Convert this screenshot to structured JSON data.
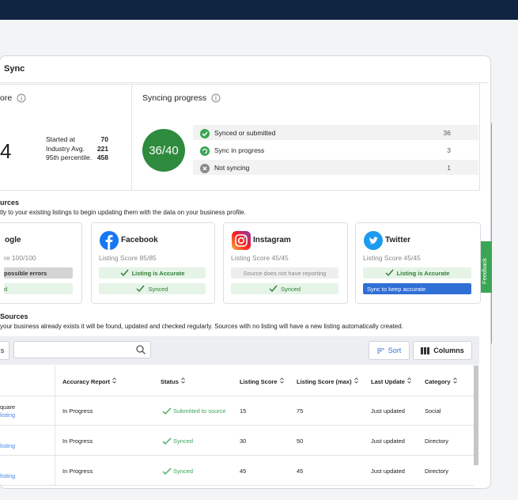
{
  "header": {
    "title": "Sync"
  },
  "score": {
    "title": "ore",
    "value": "4",
    "stats": [
      {
        "label": "Started at",
        "value": 70
      },
      {
        "label": "Industry Avg.",
        "value": 221
      },
      {
        "label": "95th percentile.",
        "value": 458
      }
    ]
  },
  "progress": {
    "title": "Syncing progress",
    "ratio": "36/40",
    "rows": [
      {
        "label": "Synced or submitted",
        "count": 36
      },
      {
        "label": "Sync in progress",
        "count": 3
      },
      {
        "label": "Not syncing",
        "count": 1
      }
    ]
  },
  "sources": {
    "title": "urces",
    "description": "tly to your existing listings to begin updating them with the data on your business profile."
  },
  "cards": [
    {
      "name": "ogle",
      "score": "re 100/100",
      "status": "possible errors",
      "sync": "d"
    },
    {
      "name": "Facebook",
      "score": "Listing Score 85/85",
      "status": "Listing is Accurate",
      "sync": "Synced"
    },
    {
      "name": "Instagram",
      "score": "Listing Score 45/45",
      "status": "Source does not have reporting",
      "sync": "Synced"
    },
    {
      "name": "Twitter",
      "score": "Listing Score 45/45",
      "status": "Listing is Accurate",
      "sync": "Sync to keep accurate"
    }
  ],
  "all_sources": {
    "title": "Sources",
    "description": "your business already exists it will be found, updated and checked regularly. Sources with no listing will have a new listing automatically created."
  },
  "toolbar": {
    "left_button": "s",
    "sort": "Sort",
    "columns": "Columns"
  },
  "table": {
    "columns": [
      "Accuracy Report",
      "Status",
      "Listing Score",
      "Listing Score (max)",
      "Last Update",
      "Category"
    ],
    "rows": [
      {
        "name": "quare",
        "link": "listing",
        "cells": [
          "In Progress",
          "Submitted to source",
          15,
          75,
          "Just updated",
          "Social"
        ]
      },
      {
        "link": "listing",
        "cells": [
          "In Progress",
          "Synced",
          30,
          50,
          "Just updated",
          "Directory"
        ]
      },
      {
        "link": "listing",
        "cells": [
          "In Progress",
          "Synced",
          45,
          45,
          "Just updated",
          "Directory"
        ]
      }
    ]
  },
  "feedback": "Feedback"
}
